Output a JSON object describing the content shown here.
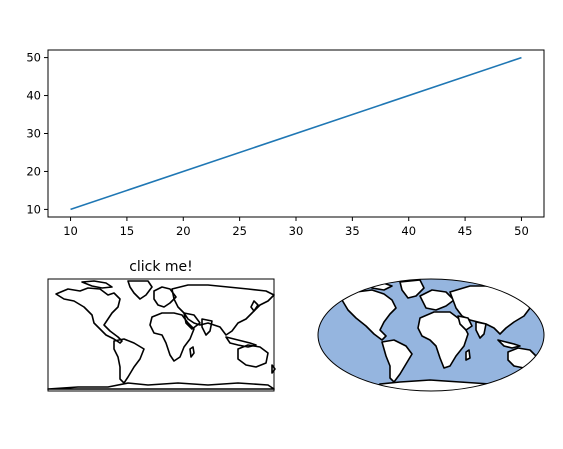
{
  "chart_data": [
    {
      "type": "line",
      "title": "",
      "xlabel": "",
      "ylabel": "",
      "xlim": [
        8,
        52
      ],
      "ylim": [
        8,
        52
      ],
      "x_ticks": [
        10,
        15,
        20,
        25,
        30,
        35,
        40,
        45,
        50
      ],
      "y_ticks": [
        10,
        20,
        30,
        40,
        50
      ],
      "series": [
        {
          "x": [
            10,
            50
          ],
          "y": [
            10,
            50
          ],
          "color": "#1f77b4"
        }
      ],
      "grid": false
    },
    {
      "type": "map",
      "projection": "plate carree",
      "title": "click me!",
      "coastlines": true,
      "ocean_color": "#ffffff"
    },
    {
      "type": "map",
      "projection": "mollweide",
      "title": "",
      "coastlines": true,
      "ocean_color": "#95b5df",
      "land_color": "#ffffff"
    }
  ]
}
